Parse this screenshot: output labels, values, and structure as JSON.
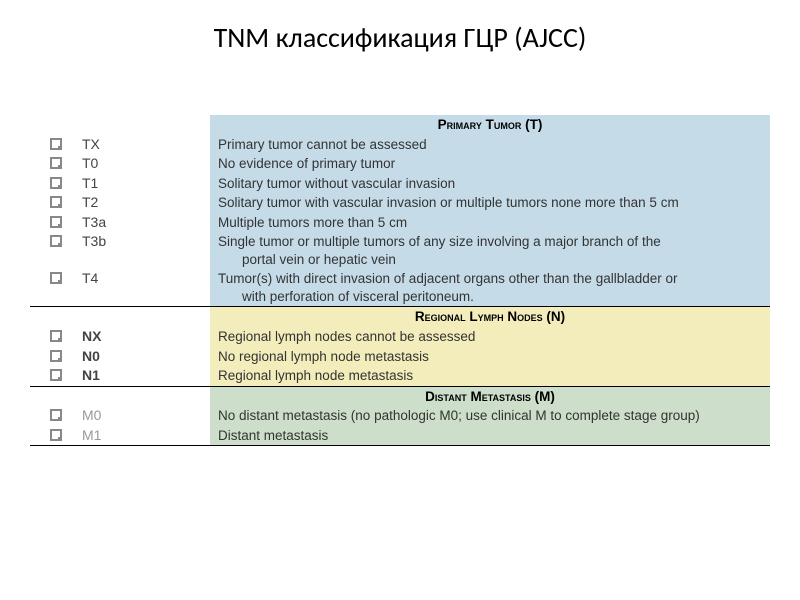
{
  "title": "TNM классификация ГЦР (AJCC)",
  "sections": [
    {
      "id": "t",
      "header": "Primary Tumor (T)",
      "header_bg": "#c5dce8",
      "items": [
        {
          "code": "TX",
          "desc": "Primary tumor cannot be assessed",
          "bold": false
        },
        {
          "code": "T0",
          "desc": "No evidence of primary tumor",
          "bold": false
        },
        {
          "code": "T1",
          "desc": "Solitary tumor without vascular invasion",
          "bold": false
        },
        {
          "code": "T2",
          "desc": "Solitary tumor with vascular invasion or multiple tumors none more than 5 cm",
          "bold": false
        },
        {
          "code": "T3a",
          "desc": "Multiple tumors more than 5 cm",
          "bold": false
        },
        {
          "code": "T3b",
          "desc": "Single tumor or multiple tumors of any size involving a major branch of the portal vein or hepatic vein",
          "bold": false,
          "wrap": true
        },
        {
          "code": "T4",
          "desc": "Tumor(s) with direct invasion of adjacent organs other than the gallbladder or with perforation of visceral peritoneum.",
          "bold": false,
          "wrap": true
        }
      ]
    },
    {
      "id": "n",
      "header": "Regional Lymph Nodes (N)",
      "header_bg": "#f3ecbb",
      "items": [
        {
          "code": "NX",
          "desc": "Regional lymph nodes cannot be assessed",
          "bold": true
        },
        {
          "code": "N0",
          "desc": "No regional lymph node metastasis",
          "bold": true
        },
        {
          "code": "N1",
          "desc": "Regional lymph node metastasis",
          "bold": true
        }
      ]
    },
    {
      "id": "m",
      "header": "Distant Metastasis (M)",
      "header_bg": "#cddfca",
      "items": [
        {
          "code": "M0",
          "desc": "No distant metastasis  (no pathologic M0; use clinical M to complete stage group)",
          "gray": true
        },
        {
          "code": "M1",
          "desc": "Distant metastasis",
          "gray": true
        }
      ]
    }
  ]
}
